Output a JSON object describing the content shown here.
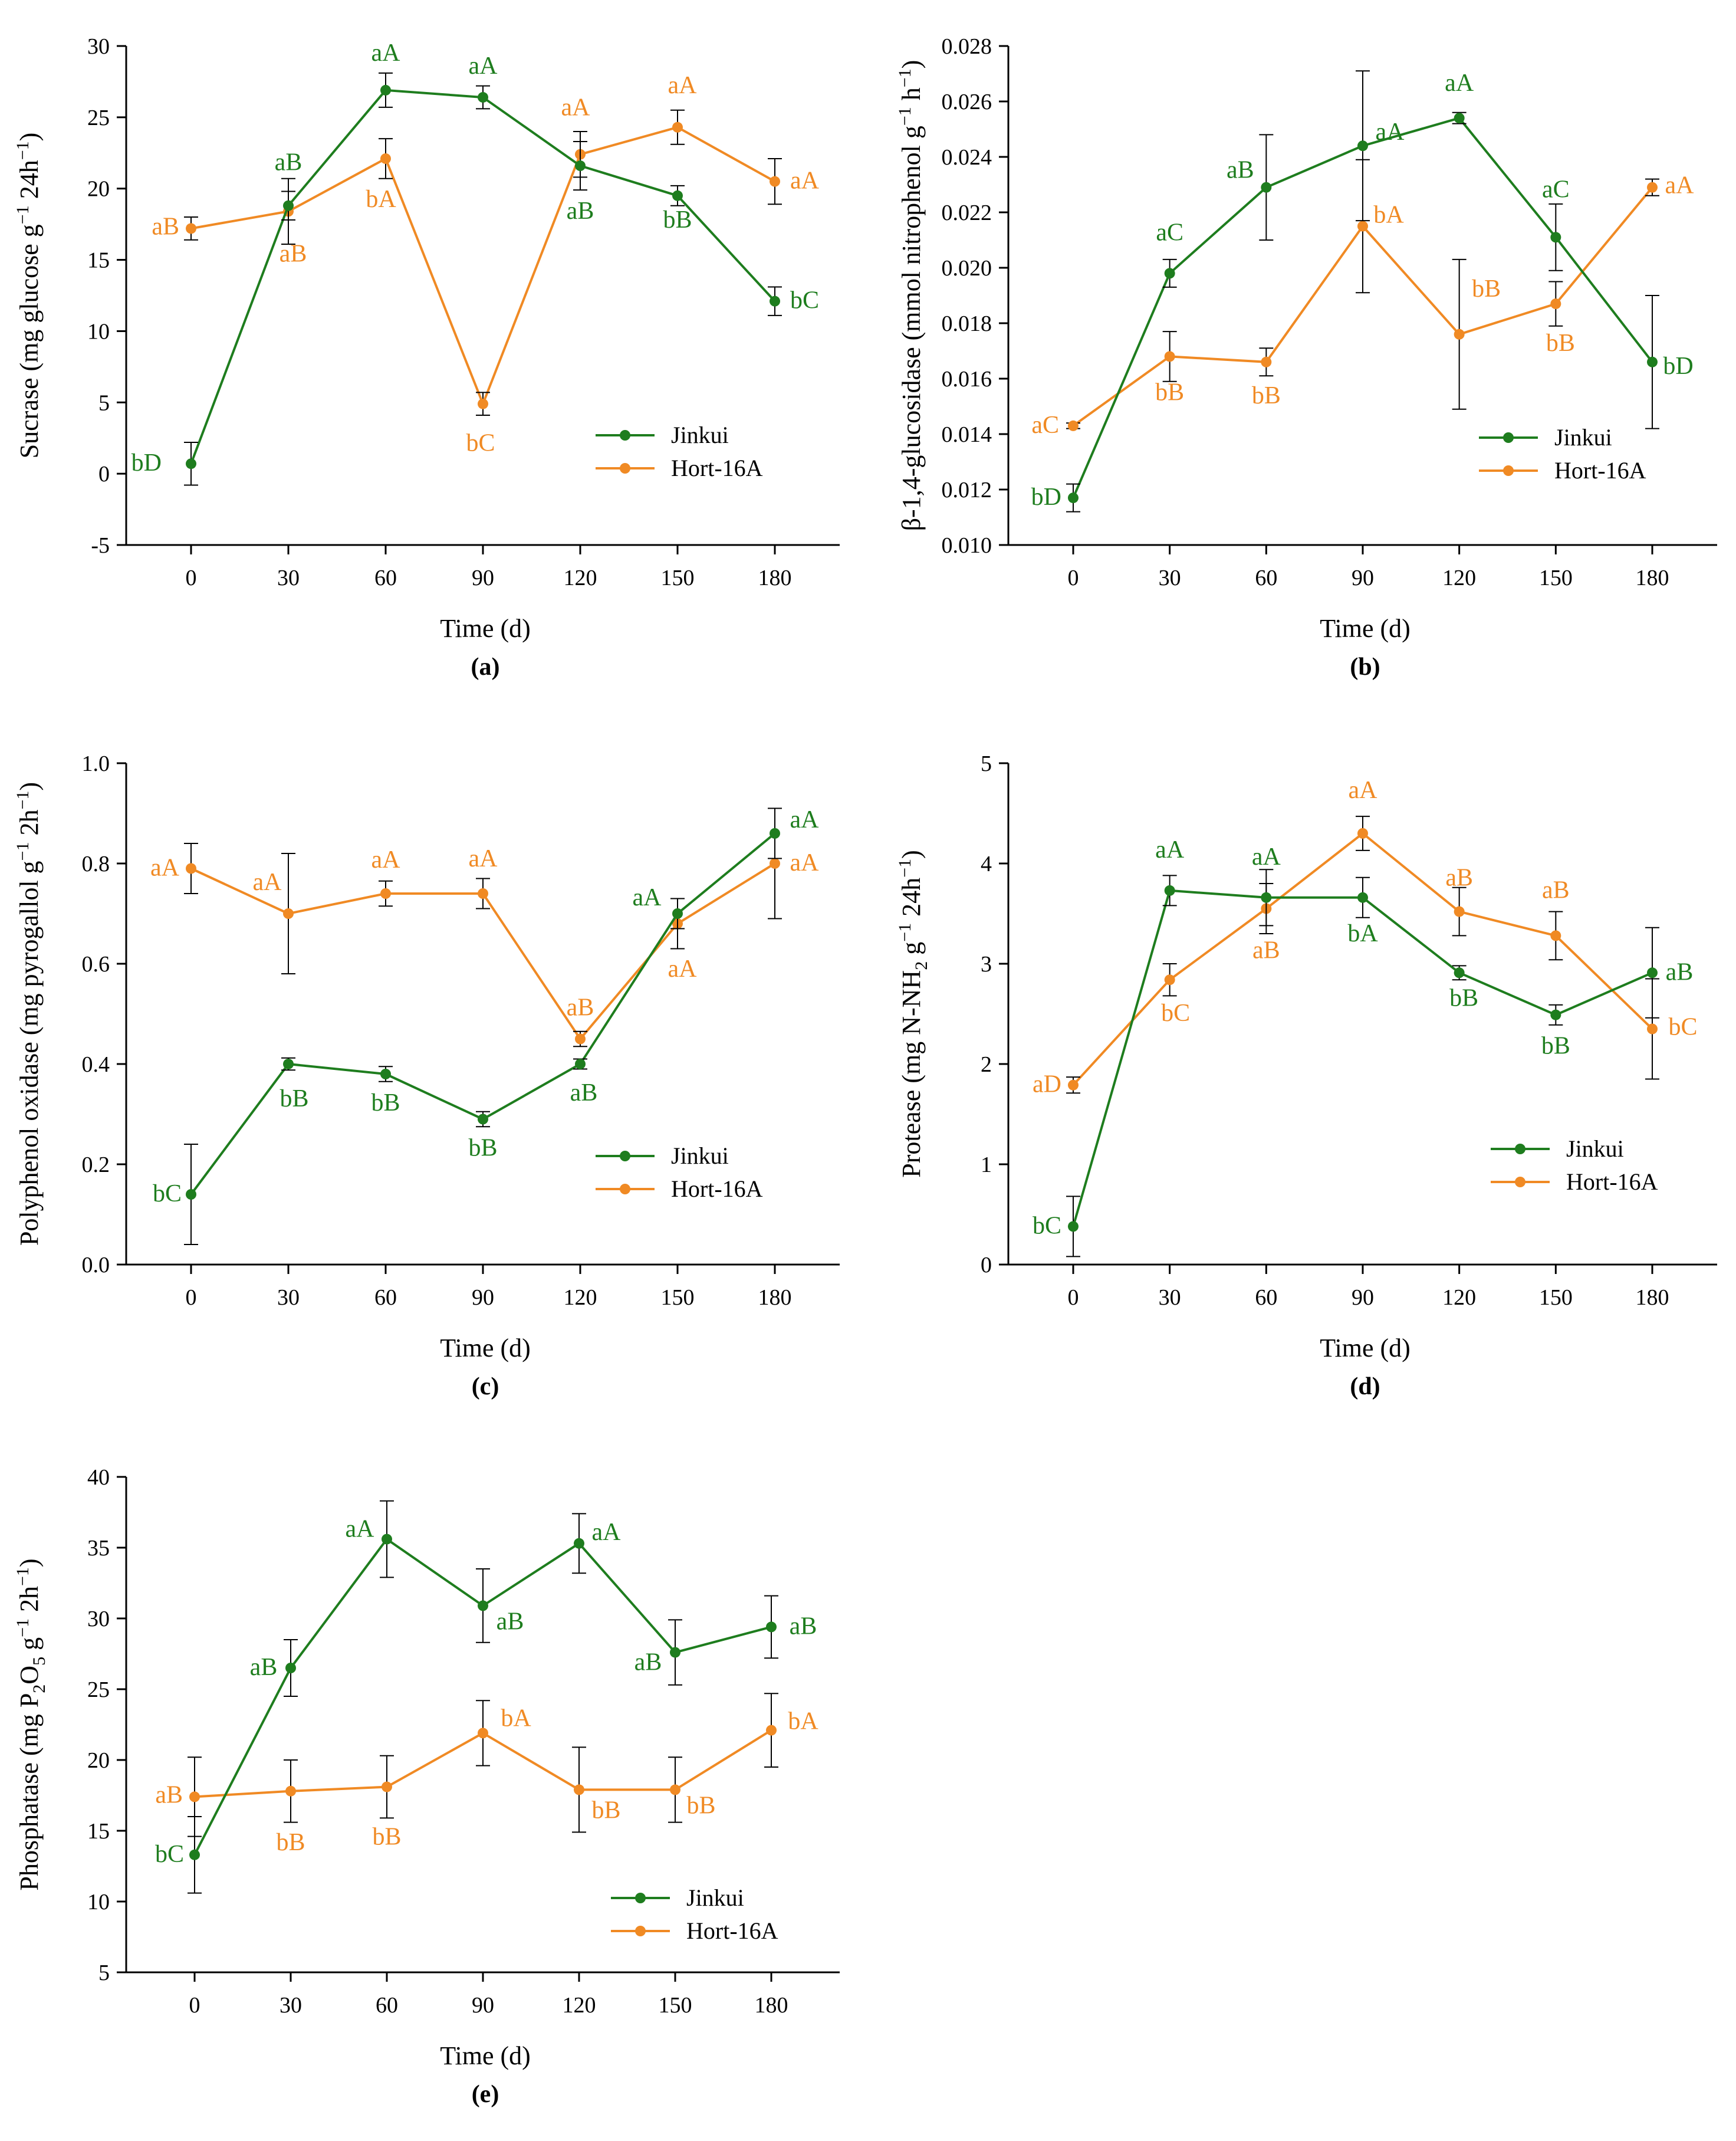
{
  "colors": {
    "jinkui": "#1e7d1e",
    "hort": "#f08a24",
    "axis": "#000000"
  },
  "chart_data": [
    {
      "panel": "a",
      "type": "line",
      "panel_label": "(a)",
      "ylabel_parts": [
        "Sucrase (mg glucose g",
        "−1",
        " 24h",
        "−1",
        ")"
      ],
      "xlabel": "Time (d)",
      "x": [
        0,
        30,
        60,
        90,
        120,
        150,
        180
      ],
      "x_tick_labels": [
        "0",
        "30",
        "60",
        "90",
        "120",
        "150",
        "180"
      ],
      "ylim": [
        -5,
        30
      ],
      "y_ticks": [
        -5,
        0,
        5,
        10,
        15,
        20,
        25,
        30
      ],
      "y_tick_labels": [
        "-5",
        "0",
        "5",
        "10",
        "15",
        "20",
        "25",
        "30"
      ],
      "legend": [
        "Jinkui",
        "Hort-16A"
      ],
      "series": [
        {
          "name": "Jinkui",
          "values": [
            0.7,
            18.8,
            26.9,
            26.4,
            21.6,
            19.5,
            12.1
          ],
          "errors": [
            1.5,
            1.0,
            1.2,
            0.8,
            1.7,
            0.7,
            1.0
          ],
          "labels": [
            "bD",
            "aB",
            "aA",
            "aA",
            "aB",
            "bB",
            "bC"
          ]
        },
        {
          "name": "Hort-16A",
          "values": [
            17.2,
            18.4,
            22.1,
            4.9,
            22.4,
            24.3,
            20.5
          ],
          "errors": [
            0.8,
            2.3,
            1.4,
            0.8,
            1.6,
            1.2,
            1.6
          ],
          "labels": [
            "aB",
            "aB",
            "bA",
            "bC",
            "aA",
            "aA",
            "aA"
          ]
        }
      ]
    },
    {
      "panel": "b",
      "type": "line",
      "panel_label": "(b)",
      "ylabel_parts": [
        "β-1,4-glucosidase (mmol nitrophenol g",
        "−1",
        " h",
        "−1",
        ")"
      ],
      "xlabel": "Time (d)",
      "x": [
        0,
        30,
        60,
        90,
        120,
        150,
        180
      ],
      "x_tick_labels": [
        "0",
        "30",
        "60",
        "90",
        "120",
        "150",
        "180"
      ],
      "ylim": [
        0.01,
        0.028
      ],
      "y_ticks": [
        0.01,
        0.012,
        0.014,
        0.016,
        0.018,
        0.02,
        0.022,
        0.024,
        0.026,
        0.028
      ],
      "y_tick_labels": [
        "0.010",
        "0.012",
        "0.014",
        "0.016",
        "0.018",
        "0.020",
        "0.022",
        "0.024",
        "0.026",
        "0.028"
      ],
      "legend": [
        "Jinkui",
        "Hort-16A"
      ],
      "series": [
        {
          "name": "Jinkui",
          "values": [
            0.0117,
            0.0198,
            0.0229,
            0.0244,
            0.0254,
            0.0211,
            0.0166
          ],
          "errors": [
            0.0005,
            0.0005,
            0.0019,
            0.0027,
            0.0002,
            0.0012,
            0.0024
          ],
          "labels": [
            "bD",
            "aC",
            "aB",
            "aA",
            "aA",
            "aC",
            "bD"
          ]
        },
        {
          "name": "Hort-16A",
          "values": [
            0.0143,
            0.0168,
            0.0166,
            0.0215,
            0.0176,
            0.0187,
            0.0229
          ],
          "errors": [
            0.0001,
            0.0009,
            0.0005,
            0.0024,
            0.0027,
            0.0008,
            0.0003
          ],
          "labels": [
            "aC",
            "bB",
            "bB",
            "bA",
            "bB",
            "bB",
            "aA"
          ]
        }
      ]
    },
    {
      "panel": "c",
      "type": "line",
      "panel_label": "(c)",
      "ylabel_parts": [
        "Polyphenol oxidase (mg pyrogallol g",
        "−1",
        " 2h",
        "−1",
        ")"
      ],
      "xlabel": "Time (d)",
      "x": [
        0,
        30,
        60,
        90,
        120,
        150,
        180
      ],
      "x_tick_labels": [
        "0",
        "30",
        "60",
        "90",
        "120",
        "150",
        "180"
      ],
      "ylim": [
        0.0,
        1.0
      ],
      "y_ticks": [
        0.0,
        0.2,
        0.4,
        0.6,
        0.8,
        1.0
      ],
      "y_tick_labels": [
        "0.0",
        "0.2",
        "0.4",
        "0.6",
        "0.8",
        "1.0"
      ],
      "legend": [
        "Jinkui",
        "Hort-16A"
      ],
      "series": [
        {
          "name": "Jinkui",
          "values": [
            0.14,
            0.4,
            0.38,
            0.29,
            0.4,
            0.7,
            0.86
          ],
          "errors": [
            0.1,
            0.012,
            0.015,
            0.015,
            0.01,
            0.03,
            0.05
          ],
          "labels": [
            "bC",
            "bB",
            "bB",
            "bB",
            "aB",
            "aA",
            "aA"
          ]
        },
        {
          "name": "Hort-16A",
          "values": [
            0.79,
            0.7,
            0.74,
            0.74,
            0.45,
            0.68,
            0.8
          ],
          "errors": [
            0.05,
            0.12,
            0.025,
            0.03,
            0.015,
            0.05,
            0.11
          ],
          "labels": [
            "aA",
            "aA",
            "aA",
            "aA",
            "aB",
            "aA",
            "aA"
          ]
        }
      ]
    },
    {
      "panel": "d",
      "type": "line",
      "panel_label": "(d)",
      "ylabel_parts": [
        "Protease (mg N-NH",
        "2",
        " g",
        "−1",
        " 24h",
        "−1",
        ")"
      ],
      "xlabel": "Time (d)",
      "x": [
        0,
        30,
        60,
        90,
        120,
        150,
        180
      ],
      "x_tick_labels": [
        "0",
        "30",
        "60",
        "90",
        "120",
        "150",
        "180"
      ],
      "ylim": [
        0,
        5
      ],
      "y_ticks": [
        0,
        1,
        2,
        3,
        4,
        5
      ],
      "y_tick_labels": [
        "0",
        "1",
        "2",
        "3",
        "4",
        "5"
      ],
      "legend": [
        "Jinkui",
        "Hort-16A"
      ],
      "series": [
        {
          "name": "Jinkui",
          "values": [
            0.38,
            3.73,
            3.66,
            3.66,
            2.91,
            2.49,
            2.91
          ],
          "errors": [
            0.3,
            0.15,
            0.28,
            0.2,
            0.07,
            0.1,
            0.45
          ],
          "labels": [
            "bC",
            "aA",
            "aA",
            "bA",
            "bB",
            "bB",
            "aB"
          ]
        },
        {
          "name": "Hort-16A",
          "values": [
            1.79,
            2.84,
            3.55,
            4.3,
            3.52,
            3.28,
            2.35
          ],
          "errors": [
            0.08,
            0.16,
            0.25,
            0.17,
            0.24,
            0.24,
            0.5
          ],
          "labels": [
            "aD",
            "bC",
            "aB",
            "aA",
            "aB",
            "aB",
            "bC"
          ]
        }
      ]
    },
    {
      "panel": "e",
      "type": "line",
      "panel_label": "(e)",
      "ylabel_parts": [
        "Phosphatase (mg P",
        "2",
        "O",
        "5",
        " g",
        "−1",
        " 2h",
        "−1",
        ")"
      ],
      "xlabel": "Time (d)",
      "x": [
        0,
        30,
        60,
        90,
        120,
        150,
        180
      ],
      "x_tick_labels": [
        "0",
        "30",
        "60",
        "90",
        "120",
        "150",
        "180"
      ],
      "ylim": [
        5,
        40
      ],
      "y_ticks": [
        5,
        10,
        15,
        20,
        25,
        30,
        35,
        40
      ],
      "y_tick_labels": [
        "5",
        "10",
        "15",
        "20",
        "25",
        "30",
        "35",
        "40"
      ],
      "legend": [
        "Jinkui",
        "Hort-16A"
      ],
      "series": [
        {
          "name": "Jinkui",
          "values": [
            13.3,
            26.5,
            35.6,
            30.9,
            35.3,
            27.6,
            29.4
          ],
          "errors": [
            2.7,
            2.0,
            2.7,
            2.6,
            2.1,
            2.3,
            2.2
          ],
          "labels": [
            "bC",
            "aB",
            "aA",
            "aB",
            "aA",
            "aB",
            "aB"
          ]
        },
        {
          "name": "Hort-16A",
          "values": [
            17.4,
            17.8,
            18.1,
            21.9,
            17.9,
            17.9,
            22.1
          ],
          "errors": [
            2.8,
            2.2,
            2.2,
            2.3,
            3.0,
            2.3,
            2.6
          ],
          "labels": [
            "aB",
            "bB",
            "bB",
            "bA",
            "bB",
            "bB",
            "bA"
          ]
        }
      ]
    }
  ]
}
